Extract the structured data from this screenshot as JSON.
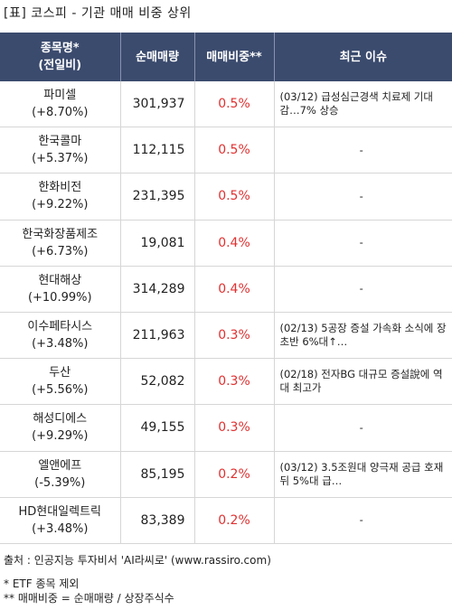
{
  "title": "[표] 코스피 - 기관 매매 비중 상위",
  "header": {
    "name_line1": "종목명*",
    "name_line2": "(전일비)",
    "volume": "순매매량",
    "ratio": "매매비중**",
    "issue": "최근 이슈"
  },
  "rows": [
    {
      "name": "파미셀",
      "change": "(+8.70%)",
      "volume": "301,937",
      "ratio": "0.5%",
      "issue": "(03/12) 급성심근경색 치료제 기대감…7% 상승"
    },
    {
      "name": "한국콜마",
      "change": "(+5.37%)",
      "volume": "112,115",
      "ratio": "0.5%",
      "issue": "-"
    },
    {
      "name": "한화비전",
      "change": "(+9.22%)",
      "volume": "231,395",
      "ratio": "0.5%",
      "issue": "-"
    },
    {
      "name": "한국화장품제조",
      "change": "(+6.73%)",
      "volume": "19,081",
      "ratio": "0.4%",
      "issue": "-"
    },
    {
      "name": "현대해상",
      "change": "(+10.99%)",
      "volume": "314,289",
      "ratio": "0.4%",
      "issue": "-"
    },
    {
      "name": "이수페타시스",
      "change": "(+3.48%)",
      "volume": "211,963",
      "ratio": "0.3%",
      "issue": "(02/13) 5공장 증설 가속화 소식에 장 초반 6%대↑…"
    },
    {
      "name": "두산",
      "change": "(+5.56%)",
      "volume": "52,082",
      "ratio": "0.3%",
      "issue": "(02/18) 전자BG 대규모 증설說에 역대 최고가"
    },
    {
      "name": "해성디에스",
      "change": "(+9.29%)",
      "volume": "49,155",
      "ratio": "0.3%",
      "issue": "-"
    },
    {
      "name": "엘앤에프",
      "change": "(-5.39%)",
      "volume": "85,195",
      "ratio": "0.2%",
      "issue": "(03/12) 3.5조원대 양극재 공급 호재 뒤 5%대 급…"
    },
    {
      "name": "HD현대일렉트릭",
      "change": "(+3.48%)",
      "volume": "83,389",
      "ratio": "0.2%",
      "issue": "-"
    }
  ],
  "footer": {
    "source": "출처 : 인공지능 투자비서 'AI라씨로' (www.rassiro.com)",
    "note1": "* ETF 종목 제외",
    "note2": "** 매매비중 = 순매매량 / 상장주식수"
  },
  "colors": {
    "header_bg": "#3b4b6e",
    "ratio_text": "#e03131"
  }
}
